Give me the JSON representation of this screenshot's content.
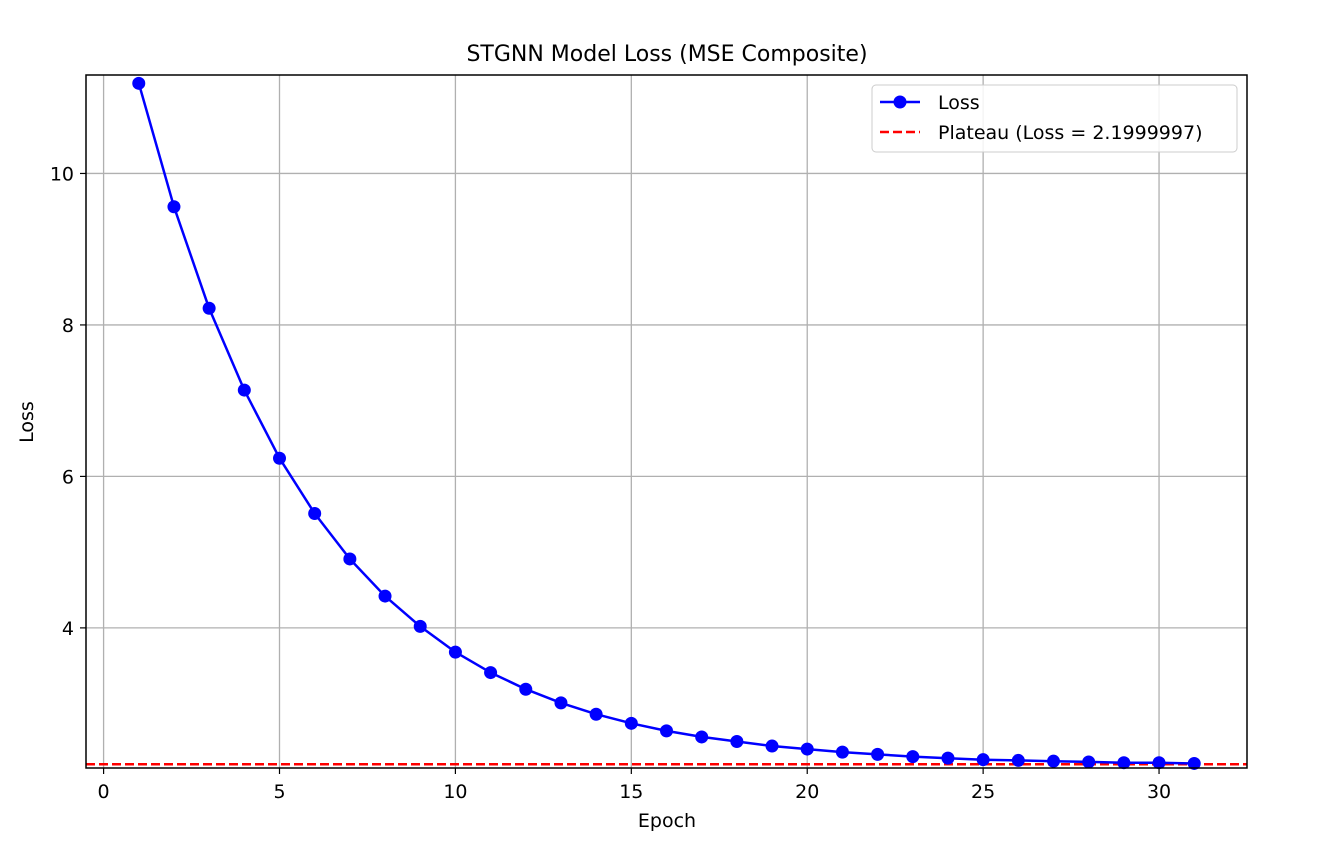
{
  "chart_data": {
    "type": "line",
    "title": "STGNN Model Loss (MSE Composite)",
    "xlabel": "Epoch",
    "ylabel": "Loss",
    "xlim": [
      -0.5,
      32.5
    ],
    "ylim": [
      2.15,
      11.3
    ],
    "xticks": [
      0,
      5,
      10,
      15,
      20,
      25,
      30
    ],
    "yticks": [
      4,
      6,
      8,
      10
    ],
    "grid": true,
    "legend_position": "top-right",
    "series": [
      {
        "name": "Loss",
        "color": "#0000ff",
        "marker": "circle",
        "x": [
          1,
          2,
          3,
          4,
          5,
          6,
          7,
          8,
          9,
          10,
          11,
          12,
          13,
          14,
          15,
          16,
          17,
          18,
          19,
          20,
          21,
          22,
          23,
          24,
          25,
          26,
          27,
          28,
          29,
          30,
          31
        ],
        "y": [
          11.19,
          9.56,
          8.22,
          7.14,
          6.24,
          5.51,
          4.91,
          4.42,
          4.02,
          3.68,
          3.41,
          3.19,
          3.01,
          2.86,
          2.74,
          2.64,
          2.56,
          2.5,
          2.44,
          2.4,
          2.36,
          2.33,
          2.3,
          2.28,
          2.26,
          2.25,
          2.24,
          2.23,
          2.22,
          2.22,
          2.21
        ]
      }
    ],
    "reference_line": {
      "name": "Plateau (Loss = 2.1999997)",
      "y": 2.1999997,
      "color": "#ff0000",
      "style": "dashed"
    }
  }
}
